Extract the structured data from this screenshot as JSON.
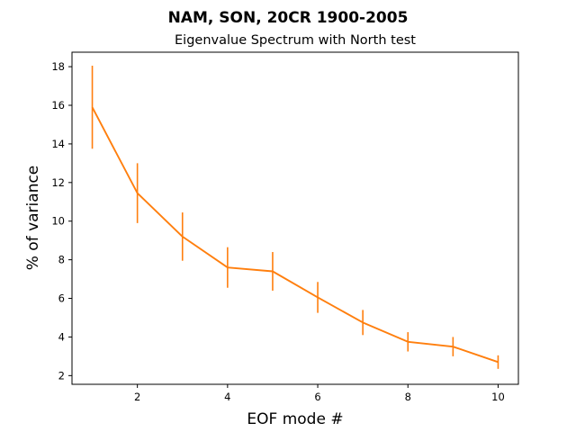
{
  "chart_data": {
    "type": "line",
    "title": "NAM, SON, 20CR 1900-2005",
    "subtitle": "Eigenvalue Spectrum with North test",
    "xlabel": "EOF mode #",
    "ylabel": "% of variance",
    "xlim": [
      0.55,
      10.45
    ],
    "ylim": [
      1.55,
      18.75
    ],
    "xticks": [
      2,
      4,
      6,
      8,
      10
    ],
    "yticks": [
      2,
      4,
      6,
      8,
      10,
      12,
      14,
      16,
      18
    ],
    "grid": false,
    "legend": "none",
    "series": [
      {
        "color": "#ff7f0e",
        "x": [
          1,
          2,
          3,
          4,
          5,
          6,
          7,
          8,
          9,
          10
        ],
        "y": [
          15.9,
          11.45,
          9.2,
          7.6,
          7.4,
          6.05,
          4.75,
          3.75,
          3.5,
          2.7
        ],
        "yerr": [
          2.15,
          1.55,
          1.25,
          1.05,
          1.0,
          0.8,
          0.65,
          0.5,
          0.5,
          0.35
        ]
      }
    ]
  }
}
